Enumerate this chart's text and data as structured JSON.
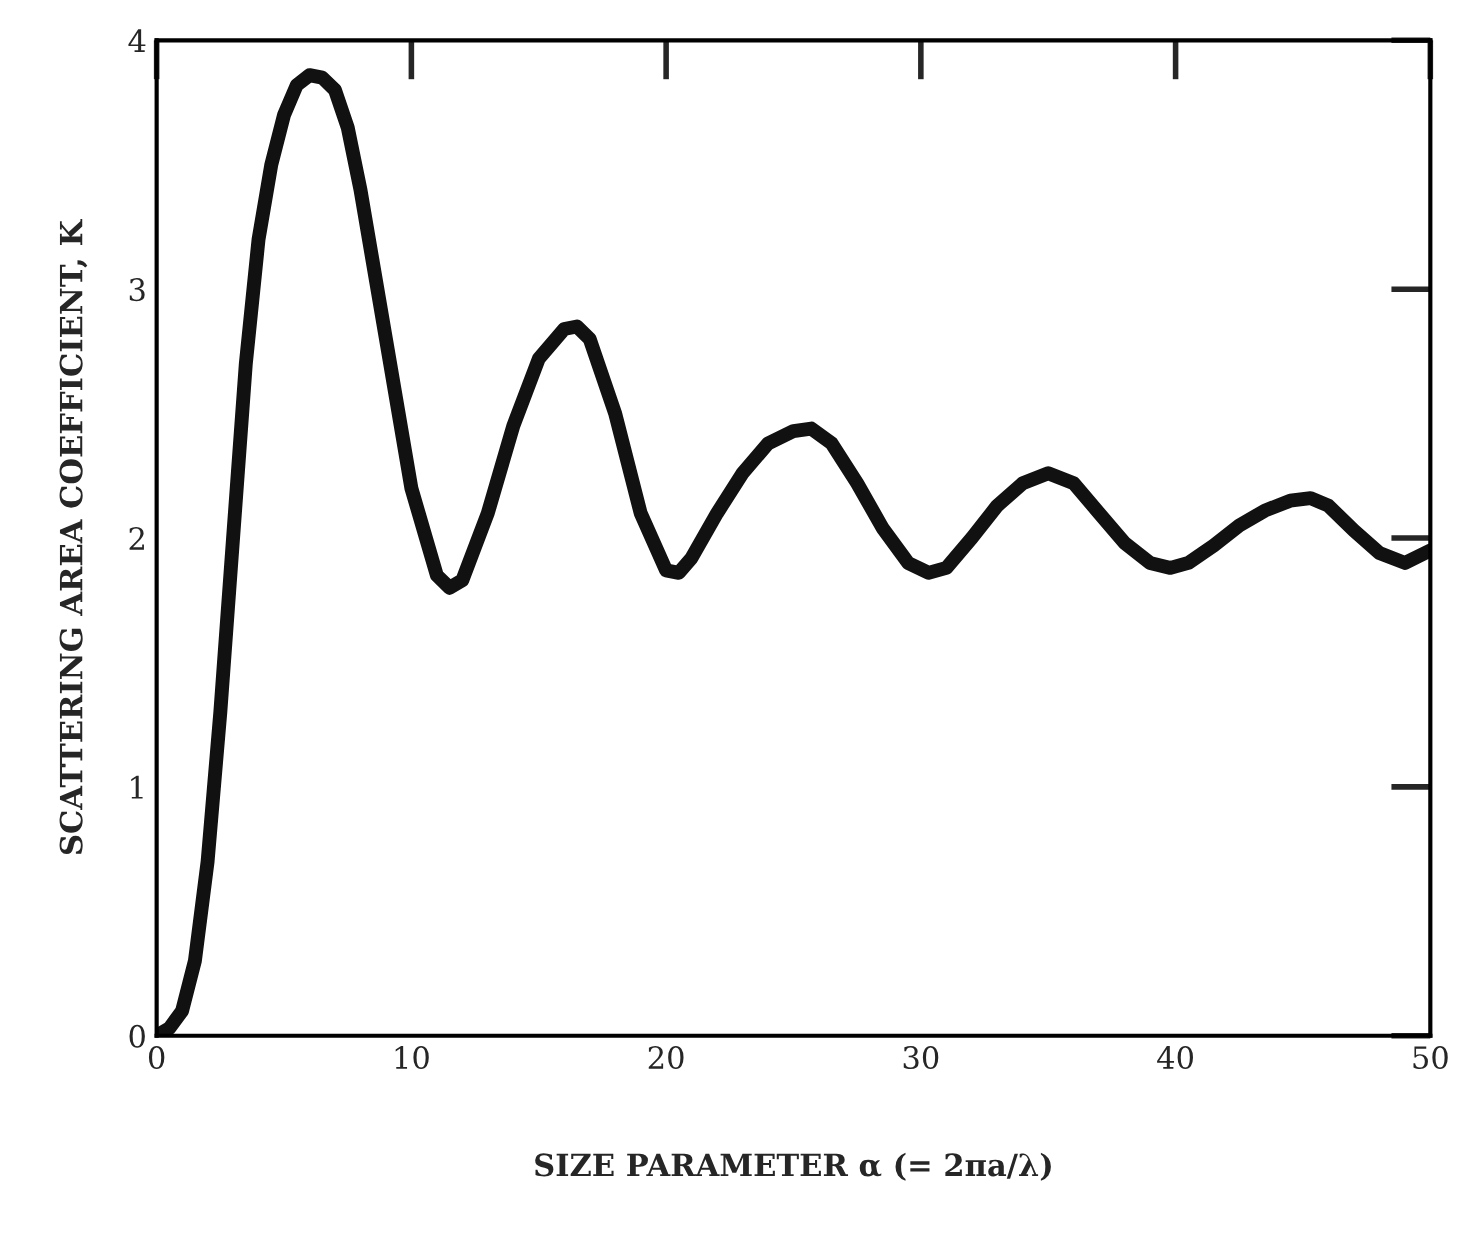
{
  "chart_data": {
    "type": "line",
    "xlabel": "SIZE PARAMETER α (= 2πa/λ)",
    "ylabel": "SCATTERING AREA COEFFICIENT, K",
    "xlim": [
      0,
      50
    ],
    "ylim": [
      0,
      4
    ],
    "xticks": [
      0,
      10,
      20,
      30,
      40,
      50
    ],
    "yticks": [
      0,
      1,
      2,
      3,
      4
    ],
    "grid": false,
    "marker": "none",
    "line_style": "solid",
    "series": [
      {
        "color": "#111111",
        "x": [
          0,
          0.5,
          1,
          1.5,
          2,
          2.5,
          3,
          3.5,
          4,
          4.5,
          5,
          5.5,
          6,
          6.5,
          7,
          7.5,
          8,
          9,
          10,
          11,
          11.5,
          12,
          13,
          14,
          15,
          16,
          16.5,
          17,
          18,
          19,
          20,
          20.5,
          21,
          22,
          23,
          24,
          25,
          25.7,
          26.5,
          27.5,
          28.5,
          29.5,
          30.3,
          31,
          32,
          33,
          34,
          35,
          36,
          37,
          38,
          39,
          39.8,
          40.5,
          41.5,
          42.5,
          43.5,
          44.5,
          45.3,
          46,
          47,
          48,
          49,
          50
        ],
        "values": [
          0,
          0.03,
          0.1,
          0.3,
          0.7,
          1.3,
          2.0,
          2.7,
          3.2,
          3.5,
          3.7,
          3.82,
          3.86,
          3.85,
          3.8,
          3.65,
          3.4,
          2.8,
          2.2,
          1.85,
          1.8,
          1.83,
          2.1,
          2.45,
          2.72,
          2.84,
          2.85,
          2.8,
          2.5,
          2.1,
          1.87,
          1.86,
          1.92,
          2.1,
          2.26,
          2.38,
          2.43,
          2.44,
          2.38,
          2.22,
          2.04,
          1.9,
          1.86,
          1.88,
          2.0,
          2.13,
          2.22,
          2.26,
          2.22,
          2.1,
          1.98,
          1.9,
          1.88,
          1.9,
          1.97,
          2.05,
          2.11,
          2.15,
          2.16,
          2.13,
          2.03,
          1.94,
          1.9,
          1.95
        ]
      }
    ]
  }
}
